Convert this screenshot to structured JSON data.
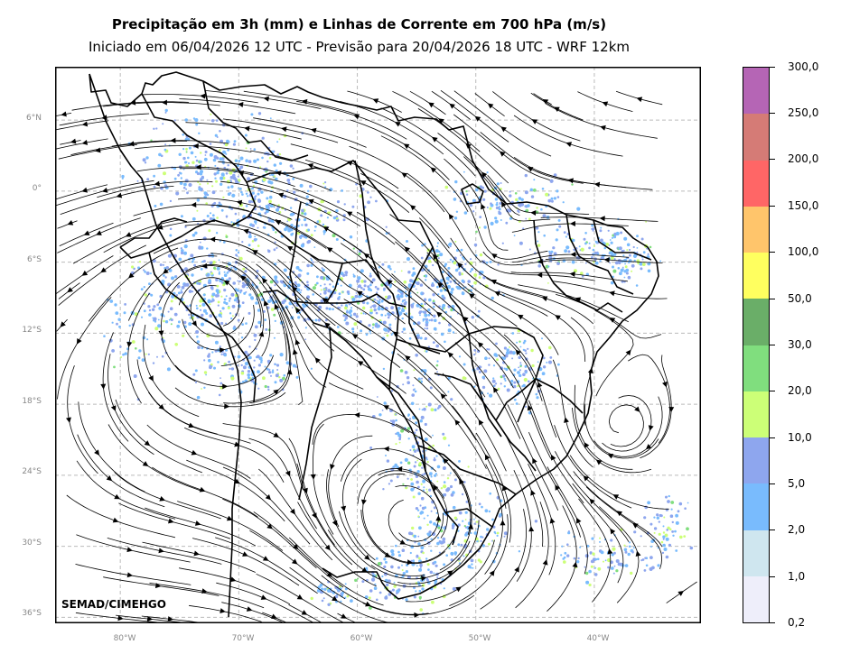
{
  "title": "Precipitação em 3h (mm) e Linhas de Corrente em 700 hPa (m/s)",
  "subtitle": "Iniciado em 06/04/2026 12 UTC - Previsão para 20/04/2026 18 UTC - WRF 12km",
  "credit": "SEMAD/CIMEHGO",
  "map": {
    "lon_min": -85.5,
    "lon_max": -31.0,
    "lat_min": -36.5,
    "lat_max": 10.5,
    "lat_labels": [
      "6°N",
      "0°",
      "6°S",
      "12°S",
      "18°S",
      "24°S",
      "30°S",
      "36°S"
    ],
    "lon_labels": [
      "80°W",
      "70°W",
      "60°W",
      "50°W",
      "40°W"
    ],
    "grid": true,
    "grid_color": "#bbbbbb",
    "streamline_color": "#000000",
    "border_color": "#000000"
  },
  "colorbar": {
    "labels": [
      "0,2",
      "1,0",
      "2,0",
      "5,0",
      "10,0",
      "20,0",
      "30,0",
      "50,0",
      "100,0",
      "150,0",
      "200,0",
      "250,0",
      "300,0"
    ],
    "colors": [
      "#eeeefa",
      "#cfe6ef",
      "#79bbfd",
      "#8ea6ee",
      "#ccff77",
      "#80de7e",
      "#6aae68",
      "#ffff5f",
      "#ffc56b",
      "#ff6666",
      "#d57b76",
      "#b565b5"
    ]
  }
}
